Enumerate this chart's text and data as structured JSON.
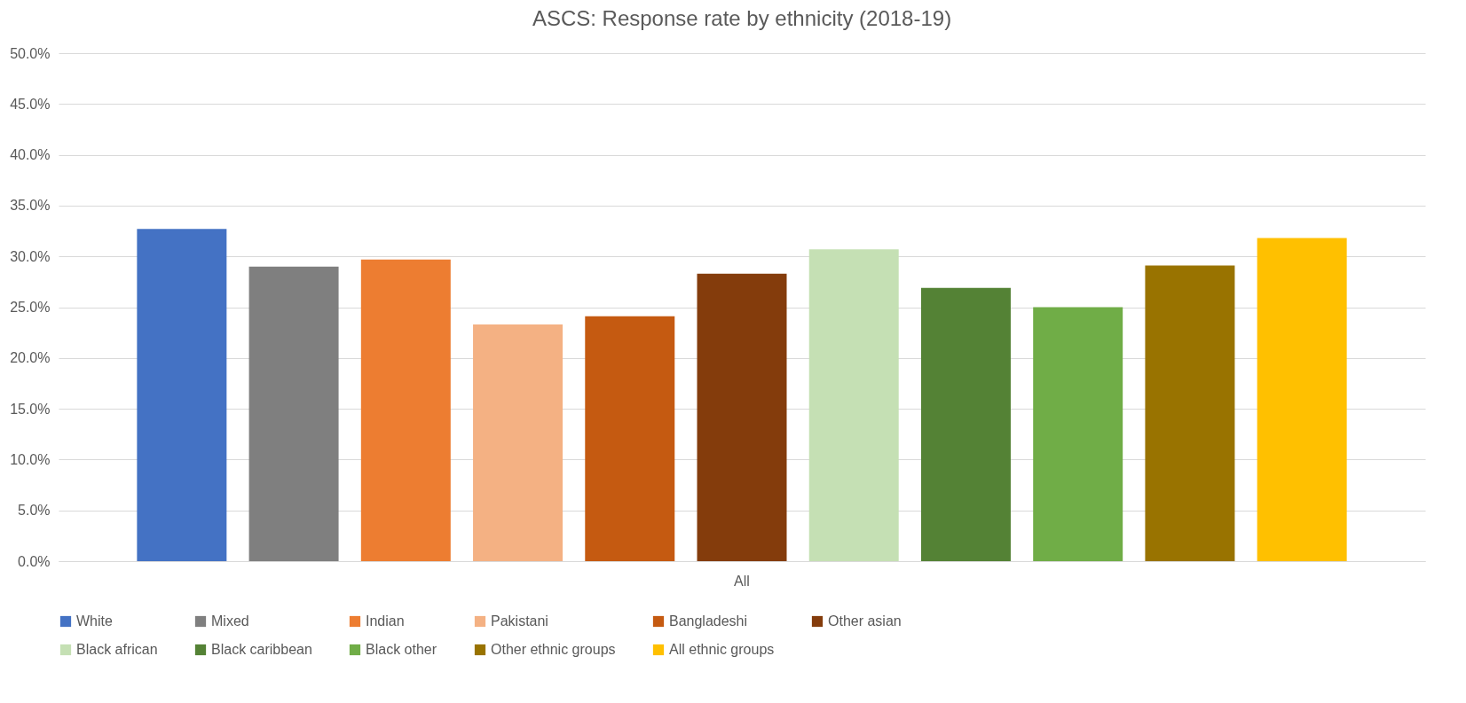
{
  "chart_data": {
    "type": "bar",
    "title": "ASCS: Response rate by ethnicity (2018-19)",
    "categories": [
      "All"
    ],
    "series": [
      {
        "name": "White",
        "color": "#4472c4",
        "values": [
          32.7
        ]
      },
      {
        "name": "Mixed",
        "color": "#7f7f7f",
        "values": [
          29.0
        ]
      },
      {
        "name": "Indian",
        "color": "#ed7d31",
        "values": [
          29.7
        ]
      },
      {
        "name": "Pakistani",
        "color": "#f4b183",
        "values": [
          23.3
        ]
      },
      {
        "name": "Bangladeshi",
        "color": "#c55a11",
        "values": [
          24.1
        ]
      },
      {
        "name": "Other asian",
        "color": "#843c0c",
        "values": [
          28.3
        ]
      },
      {
        "name": "Black african",
        "color": "#c5e0b4",
        "values": [
          30.7
        ]
      },
      {
        "name": "Black caribbean",
        "color": "#548235",
        "values": [
          26.9
        ]
      },
      {
        "name": "Black other",
        "color": "#70ad47",
        "values": [
          25.0
        ]
      },
      {
        "name": "Other ethnic groups",
        "color": "#997300",
        "values": [
          29.1
        ]
      },
      {
        "name": "All ethnic groups",
        "color": "#ffc000",
        "values": [
          31.8
        ]
      }
    ],
    "ylim": [
      0,
      50
    ],
    "yticks": [
      {
        "value": 0,
        "label": "0.0%"
      },
      {
        "value": 5,
        "label": "5.0%"
      },
      {
        "value": 10,
        "label": "10.0%"
      },
      {
        "value": 15,
        "label": "15.0%"
      },
      {
        "value": 20,
        "label": "20.0%"
      },
      {
        "value": 25,
        "label": "25.0%"
      },
      {
        "value": 30,
        "label": "30.0%"
      },
      {
        "value": 35,
        "label": "35.0%"
      },
      {
        "value": 40,
        "label": "40.0%"
      },
      {
        "value": 45,
        "label": "45.0%"
      },
      {
        "value": 50,
        "label": "50.0%"
      }
    ],
    "grid": "y",
    "legend": "bottom"
  }
}
